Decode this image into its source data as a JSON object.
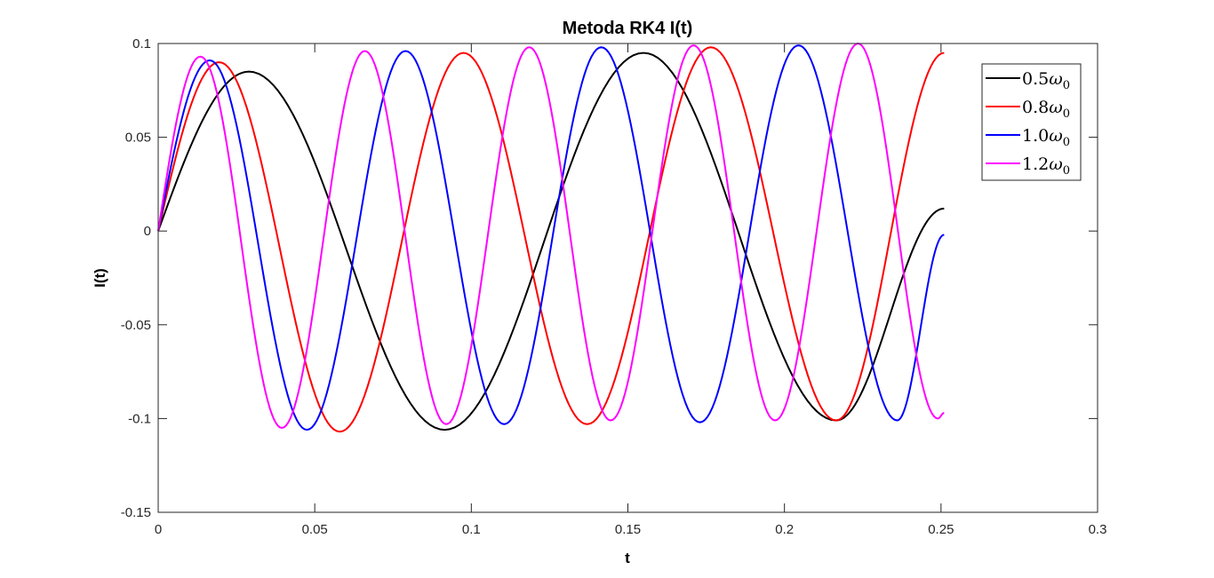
{
  "chart_data": {
    "type": "line",
    "title": "Metoda RK4 I(t)",
    "xlabel": "t",
    "ylabel": "I(t)",
    "xlim": [
      0,
      0.3
    ],
    "ylim": [
      -0.15,
      0.1
    ],
    "xticks": [
      0,
      0.05,
      0.1,
      0.15,
      0.2,
      0.25,
      0.3
    ],
    "xtick_labels": [
      "0",
      "0.05",
      "0.1",
      "0.15",
      "0.2",
      "0.25",
      "0.3"
    ],
    "yticks": [
      -0.15,
      -0.1,
      -0.05,
      0,
      0.05,
      0.1
    ],
    "ytick_labels": [
      "-0.15",
      "-0.1",
      "-0.05",
      "0",
      "0.05",
      "0.1"
    ],
    "grid": false,
    "legend_position": "top-right",
    "series": [
      {
        "name": "0.5ω0",
        "legend_base": "0.5",
        "legend_symbol": "ω",
        "legend_sub": "0",
        "color": "#000000",
        "x": [
          0,
          0.029,
          0.0915,
          0.155,
          0.2165,
          0.251
        ],
        "y": [
          0,
          0.085,
          -0.106,
          0.095,
          -0.101,
          0.012
        ]
      },
      {
        "name": "0.8ω0",
        "legend_base": "0.8",
        "legend_symbol": "ω",
        "legend_sub": "0",
        "color": "#ff0000",
        "x": [
          0,
          0.0195,
          0.058,
          0.0975,
          0.137,
          0.1765,
          0.2165,
          0.251
        ],
        "y": [
          0,
          0.09,
          -0.107,
          0.095,
          -0.103,
          0.098,
          -0.101,
          0.095
        ]
      },
      {
        "name": "1.0ω0",
        "legend_base": "1.0",
        "legend_symbol": "ω",
        "legend_sub": "0",
        "color": "#0000ff",
        "x": [
          0,
          0.0165,
          0.0475,
          0.079,
          0.1105,
          0.1415,
          0.173,
          0.2045,
          0.236,
          0.251
        ],
        "y": [
          0,
          0.091,
          -0.106,
          0.096,
          -0.103,
          0.098,
          -0.102,
          0.099,
          -0.101,
          -0.002
        ]
      },
      {
        "name": "1.2ω0",
        "legend_base": "1.2",
        "legend_symbol": "ω",
        "legend_sub": "0",
        "color": "#ff00ff",
        "x": [
          0,
          0.0135,
          0.0395,
          0.066,
          0.092,
          0.1185,
          0.1445,
          0.171,
          0.197,
          0.2235,
          0.249,
          0.251
        ],
        "y": [
          0,
          0.093,
          -0.105,
          0.096,
          -0.103,
          0.098,
          -0.101,
          0.099,
          -0.101,
          0.1,
          -0.1,
          -0.097
        ]
      }
    ]
  }
}
